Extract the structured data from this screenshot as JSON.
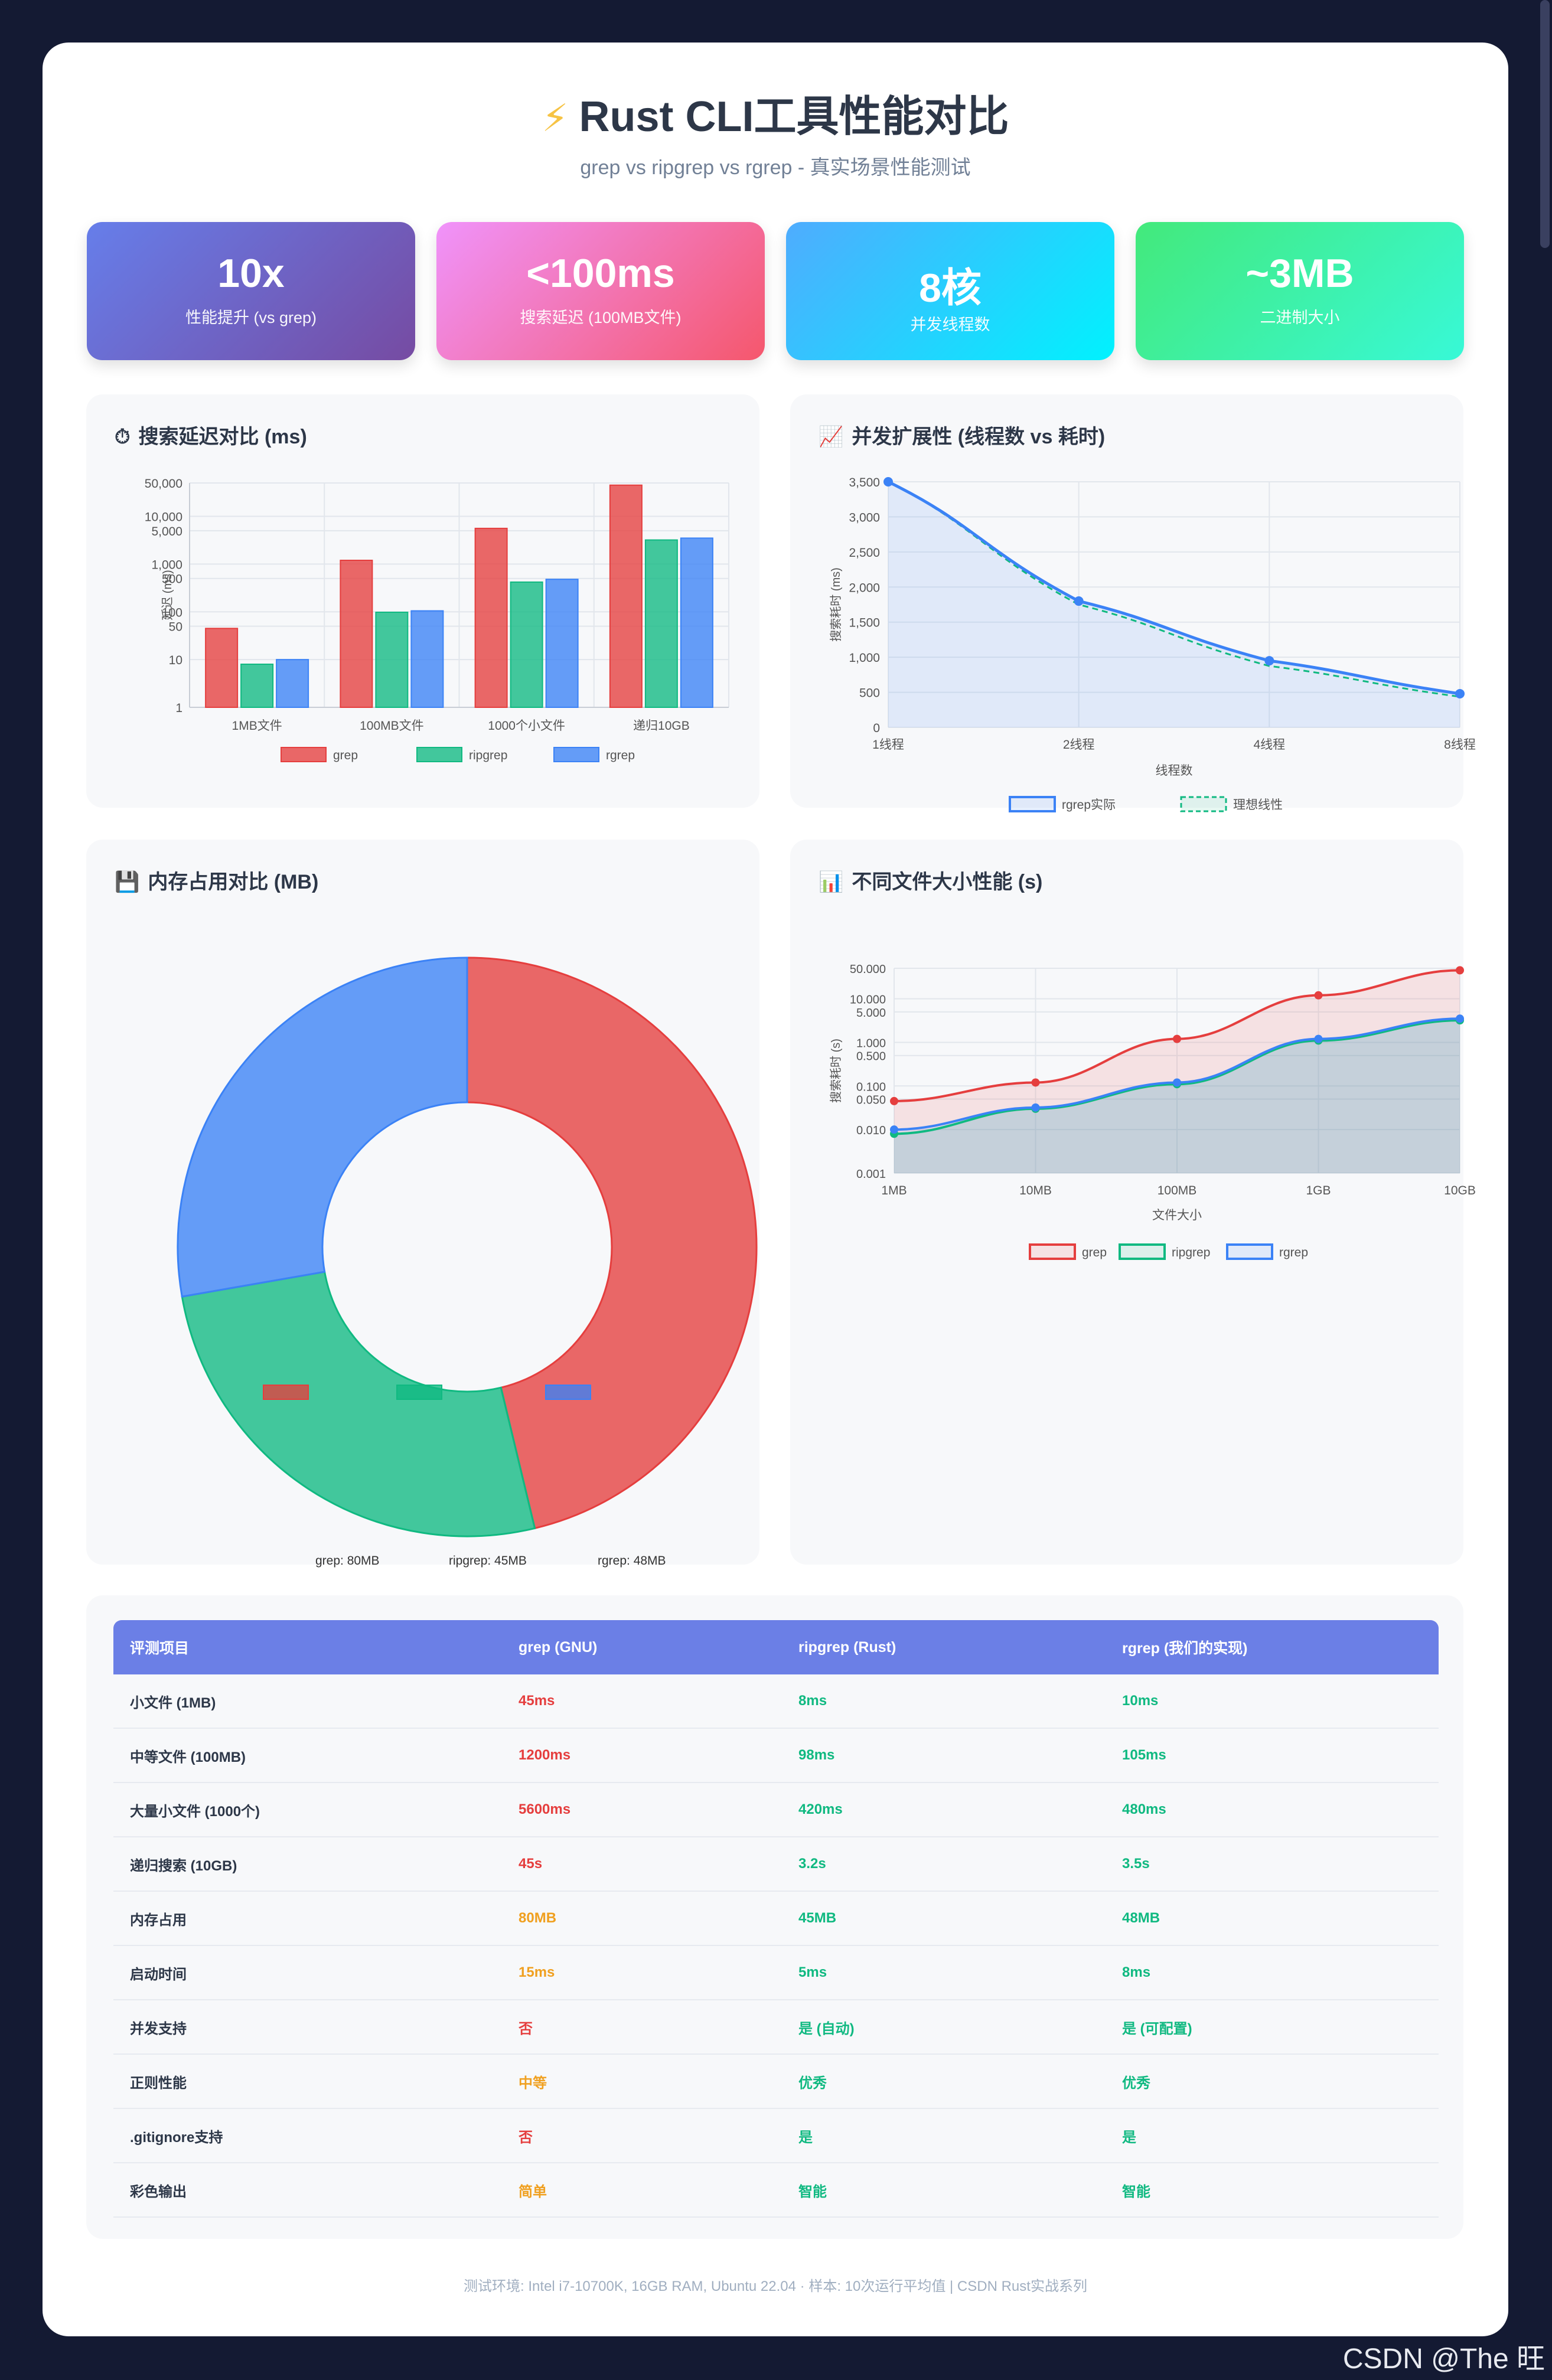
{
  "header": {
    "icon": "lightning-icon",
    "title": "Rust CLI工具性能对比",
    "subtitle": "grep vs ripgrep vs rgrep - 真实场景性能测试"
  },
  "stats": [
    {
      "value": "10x",
      "label": "性能提升 (vs grep)",
      "color_from": "#667eea",
      "color_to": "#764ba2"
    },
    {
      "value": "<100ms",
      "label": "搜索延迟 (100MB文件)",
      "color_from": "#f093fb",
      "color_to": "#f5576c"
    },
    {
      "value": "8核",
      "label": "并发线程数",
      "color_from": "#4facfe",
      "color_to": "#00f2fe"
    },
    {
      "value": "~3MB",
      "label": "二进制大小",
      "color_from": "#43e97b",
      "color_to": "#38f9d7"
    }
  ],
  "panels": {
    "latency_title": "搜索延迟对比 (ms)",
    "latency_icon": "stopwatch-icon",
    "scaling_title": "并发扩展性 (线程数 vs 耗时)",
    "scaling_icon": "chart-up-icon",
    "memory_title": "内存占用对比 (MB)",
    "memory_icon": "floppy-disk-icon",
    "filesize_title": "不同文件大小性能 (s)",
    "filesize_icon": "bar-chart-icon"
  },
  "colors": {
    "grep": "#e53e3e",
    "ripgrep": "#10b981",
    "rgrep": "#3b82f6"
  },
  "chart_data": [
    {
      "id": "latency",
      "type": "bar",
      "scale": "log",
      "ylabel": "延迟 (ms)",
      "ylim": [
        1,
        50000
      ],
      "yticks": [
        1,
        10,
        50,
        100,
        500,
        1000,
        5000,
        10000,
        50000
      ],
      "ytick_labels": [
        "1",
        "10",
        "50",
        "100",
        "500",
        "1,000",
        "5,000",
        "10,000",
        "50,000"
      ],
      "categories": [
        "1MB文件",
        "100MB文件",
        "1000个小文件",
        "递归10GB"
      ],
      "series": [
        {
          "name": "grep",
          "values": [
            45,
            1200,
            5600,
            45000
          ]
        },
        {
          "name": "ripgrep",
          "values": [
            8,
            98,
            420,
            3200
          ]
        },
        {
          "name": "rgrep",
          "values": [
            10,
            105,
            480,
            3500
          ]
        }
      ]
    },
    {
      "id": "scaling",
      "type": "line",
      "xlabel": "线程数",
      "ylabel": "搜索耗时 (ms)",
      "ylim": [
        0,
        3500
      ],
      "yticks": [
        0,
        500,
        1000,
        1500,
        2000,
        2500,
        3000,
        3500
      ],
      "ytick_labels": [
        "0",
        "500",
        "1,000",
        "1,500",
        "2,000",
        "2,500",
        "3,000",
        "3,500"
      ],
      "categories": [
        "1线程",
        "2线程",
        "4线程",
        "8线程"
      ],
      "series": [
        {
          "name": "rgrep实际",
          "values": [
            3500,
            1800,
            950,
            480
          ]
        },
        {
          "name": "理想线性",
          "values": [
            3500,
            1750,
            875,
            437
          ]
        }
      ]
    },
    {
      "id": "memory",
      "type": "pie",
      "legend": [
        "grep: 80MB",
        "ripgrep: 45MB",
        "rgrep: 48MB"
      ],
      "values": [
        80,
        45,
        48
      ]
    },
    {
      "id": "filesize",
      "type": "area",
      "scale": "log",
      "xlabel": "文件大小",
      "ylabel": "搜索耗时 (s)",
      "ylim": [
        0.001,
        50
      ],
      "yticks": [
        0.001,
        0.01,
        0.05,
        0.1,
        0.5,
        1,
        5,
        10,
        50
      ],
      "ytick_labels": [
        "0.001",
        "0.010",
        "0.050",
        "0.100",
        "0.500",
        "1.000",
        "5.000",
        "10.000",
        "50.000"
      ],
      "categories": [
        "1MB",
        "10MB",
        "100MB",
        "1GB",
        "10GB"
      ],
      "series": [
        {
          "name": "grep",
          "values": [
            0.045,
            0.12,
            1.2,
            12,
            45
          ]
        },
        {
          "name": "ripgrep",
          "values": [
            0.008,
            0.03,
            0.11,
            1.1,
            3.2
          ]
        },
        {
          "name": "rgrep",
          "values": [
            0.01,
            0.032,
            0.12,
            1.2,
            3.5
          ]
        }
      ]
    }
  ],
  "table": {
    "headers": [
      "评测项目",
      "grep (GNU)",
      "ripgrep (Rust)",
      "rgrep (我们的实现)"
    ],
    "rows": [
      {
        "item": "小文件 (1MB)",
        "grep": "45ms",
        "ripgrep": "8ms",
        "rgrep": "10ms",
        "grep_tone": "red"
      },
      {
        "item": "中等文件 (100MB)",
        "grep": "1200ms",
        "ripgrep": "98ms",
        "rgrep": "105ms",
        "grep_tone": "red"
      },
      {
        "item": "大量小文件 (1000个)",
        "grep": "5600ms",
        "ripgrep": "420ms",
        "rgrep": "480ms",
        "grep_tone": "red"
      },
      {
        "item": "递归搜索 (10GB)",
        "grep": "45s",
        "ripgrep": "3.2s",
        "rgrep": "3.5s",
        "grep_tone": "red"
      },
      {
        "item": "内存占用",
        "grep": "80MB",
        "ripgrep": "45MB",
        "rgrep": "48MB",
        "grep_tone": "orange"
      },
      {
        "item": "启动时间",
        "grep": "15ms",
        "ripgrep": "5ms",
        "rgrep": "8ms",
        "grep_tone": "orange"
      },
      {
        "item": "并发支持",
        "grep": "否",
        "ripgrep": "是 (自动)",
        "rgrep": "是 (可配置)",
        "grep_tone": "red"
      },
      {
        "item": "正则性能",
        "grep": "中等",
        "ripgrep": "优秀",
        "rgrep": "优秀",
        "grep_tone": "orange"
      },
      {
        "item": ".gitignore支持",
        "grep": "否",
        "ripgrep": "是",
        "rgrep": "是",
        "grep_tone": "red"
      },
      {
        "item": "彩色输出",
        "grep": "简单",
        "ripgrep": "智能",
        "rgrep": "智能",
        "grep_tone": "orange"
      }
    ]
  },
  "footer": "测试环境: Intel i7-10700K, 16GB RAM, Ubuntu 22.04 · 样本: 10次运行平均值 | CSDN Rust实战系列",
  "watermark": "CSDN @The 旺"
}
